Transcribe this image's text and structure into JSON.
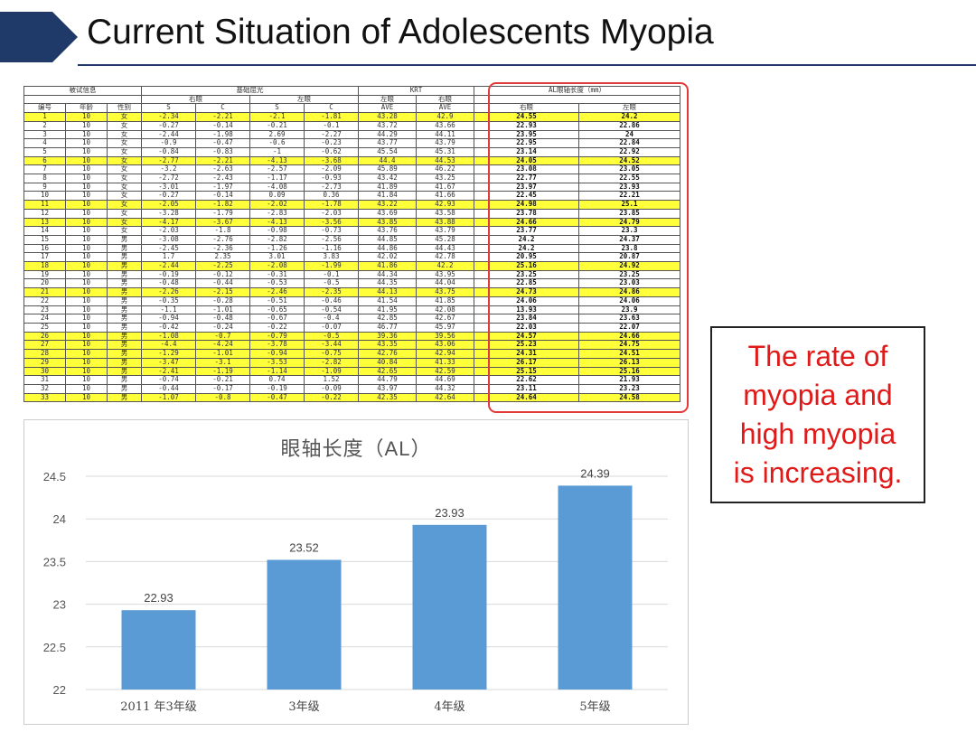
{
  "slide": {
    "title": "Current Situation of Adolescents Myopia",
    "callout": "The rate of\nmyopia and\nhigh myopia\nis increasing."
  },
  "table": {
    "group_headers": [
      "被试信息",
      "基础屈光",
      "KRT",
      "AL眼轴长度（mm）"
    ],
    "sub_headers": [
      "右眼",
      "左眼",
      "左眼",
      "右眼"
    ],
    "columns": [
      "编号",
      "年龄",
      "性别",
      "S",
      "C",
      "S",
      "C",
      "AVE",
      "AVE",
      "右眼",
      "左眼"
    ],
    "rows": [
      [
        "1",
        "10",
        "女",
        "-2.34",
        "-2.21",
        "-2.1",
        "-1.81",
        "43.28",
        "42.9",
        "24.55",
        "24.2"
      ],
      [
        "2",
        "10",
        "女",
        "-0.27",
        "-0.14",
        "-0.21",
        "-0.1",
        "43.72",
        "43.66",
        "22.93",
        "22.86"
      ],
      [
        "3",
        "10",
        "女",
        "-2.44",
        "-1.98",
        "2.69",
        "-2.27",
        "44.29",
        "44.11",
        "23.95",
        "24"
      ],
      [
        "4",
        "10",
        "女",
        "-0.9",
        "-0.47",
        "-0.6",
        "-0.23",
        "43.77",
        "43.79",
        "22.95",
        "22.84"
      ],
      [
        "5",
        "10",
        "女",
        "-0.84",
        "-0.83",
        "-1",
        "-0.62",
        "45.54",
        "45.31",
        "23.14",
        "22.92"
      ],
      [
        "6",
        "10",
        "女",
        "-2.77",
        "-2.21",
        "-4.13",
        "-3.68",
        "44.4",
        "44.53",
        "24.05",
        "24.52"
      ],
      [
        "7",
        "10",
        "女",
        "-3.2",
        "-2.63",
        "-2.57",
        "-2.09",
        "45.89",
        "46.22",
        "23.08",
        "23.05"
      ],
      [
        "8",
        "10",
        "女",
        "-2.72",
        "-2.43",
        "-1.17",
        "-0.93",
        "43.42",
        "43.25",
        "22.77",
        "22.55"
      ],
      [
        "9",
        "10",
        "女",
        "-3.01",
        "-1.97",
        "-4.08",
        "-2.73",
        "41.89",
        "41.67",
        "23.97",
        "23.93"
      ],
      [
        "10",
        "10",
        "女",
        "-0.27",
        "-0.14",
        "0.09",
        "0.36",
        "41.84",
        "41.66",
        "22.45",
        "22.21"
      ],
      [
        "11",
        "10",
        "女",
        "-2.05",
        "-1.82",
        "-2.02",
        "-1.78",
        "43.22",
        "42.93",
        "24.98",
        "25.1"
      ],
      [
        "12",
        "10",
        "女",
        "-3.28",
        "-1.79",
        "-2.83",
        "-2.03",
        "43.69",
        "43.58",
        "23.78",
        "23.85"
      ],
      [
        "13",
        "10",
        "女",
        "-4.17",
        "-3.67",
        "-4.13",
        "-3.56",
        "43.85",
        "43.88",
        "24.66",
        "24.79"
      ],
      [
        "14",
        "10",
        "女",
        "-2.03",
        "-1.8",
        "-0.98",
        "-0.73",
        "43.76",
        "43.79",
        "23.77",
        "23.3"
      ],
      [
        "15",
        "10",
        "男",
        "-3.08",
        "-2.76",
        "-2.82",
        "-2.56",
        "44.85",
        "45.28",
        "24.2",
        "24.37"
      ],
      [
        "16",
        "10",
        "男",
        "-2.45",
        "-2.36",
        "-1.26",
        "-1.16",
        "44.86",
        "44.43",
        "24.2",
        "23.8"
      ],
      [
        "17",
        "10",
        "男",
        "1.7",
        "2.35",
        "3.01",
        "3.83",
        "42.02",
        "42.78",
        "20.95",
        "20.87"
      ],
      [
        "18",
        "10",
        "男",
        "-2.44",
        "-2.25",
        "-2.08",
        "-1.99",
        "41.86",
        "42.2",
        "25.16",
        "24.92"
      ],
      [
        "19",
        "10",
        "男",
        "-0.19",
        "-0.12",
        "-0.31",
        "-0.1",
        "44.34",
        "43.95",
        "23.25",
        "23.25"
      ],
      [
        "20",
        "10",
        "男",
        "-0.48",
        "-0.44",
        "-0.53",
        "-0.5",
        "44.35",
        "44.04",
        "22.85",
        "23.03"
      ],
      [
        "21",
        "10",
        "男",
        "-2.26",
        "-2.15",
        "-2.46",
        "-2.35",
        "44.13",
        "43.75",
        "24.73",
        "24.86"
      ],
      [
        "22",
        "10",
        "男",
        "-0.35",
        "-0.28",
        "-0.51",
        "-0.46",
        "41.54",
        "41.85",
        "24.06",
        "24.06"
      ],
      [
        "23",
        "10",
        "男",
        "-1.1",
        "-1.01",
        "-0.65",
        "-0.54",
        "41.95",
        "42.08",
        "13.93",
        "23.9"
      ],
      [
        "24",
        "10",
        "男",
        "-0.94",
        "-0.48",
        "-0.67",
        "-0.4",
        "42.85",
        "42.67",
        "23.84",
        "23.63"
      ],
      [
        "25",
        "10",
        "男",
        "-0.42",
        "-0.24",
        "-0.22",
        "-0.07",
        "46.77",
        "45.97",
        "22.03",
        "22.07"
      ],
      [
        "26",
        "10",
        "男",
        "-1.08",
        "-0.7",
        "-0.79",
        "-0.5",
        "39.36",
        "39.56",
        "24.57",
        "24.66"
      ],
      [
        "27",
        "10",
        "男",
        "-4.4",
        "-4.24",
        "-3.78",
        "-3.44",
        "43.35",
        "43.06",
        "25.23",
        "24.75"
      ],
      [
        "28",
        "10",
        "男",
        "-1.29",
        "-1.01",
        "-0.94",
        "-0.75",
        "42.76",
        "42.94",
        "24.31",
        "24.51"
      ],
      [
        "29",
        "10",
        "男",
        "-3.47",
        "-3.1",
        "-3.53",
        "-2.82",
        "40.84",
        "41.33",
        "26.17",
        "26.13"
      ],
      [
        "30",
        "10",
        "男",
        "-2.41",
        "-1.19",
        "-1.14",
        "-1.09",
        "42.65",
        "42.59",
        "25.15",
        "25.16"
      ],
      [
        "31",
        "10",
        "男",
        "-0.74",
        "-0.21",
        "0.74",
        "1.52",
        "44.79",
        "44.69",
        "22.62",
        "21.93"
      ],
      [
        "32",
        "10",
        "男",
        "-0.44",
        "-0.17",
        "-0.19",
        "-0.09",
        "43.97",
        "44.32",
        "23.11",
        "23.23"
      ],
      [
        "33",
        "10",
        "男",
        "-1.07",
        "-0.8",
        "-0.47",
        "-0.22",
        "42.35",
        "42.64",
        "24.64",
        "24.58"
      ]
    ],
    "highlighted_rows": [
      "1",
      "6",
      "11",
      "13",
      "18",
      "21",
      "26",
      "27",
      "28",
      "29",
      "30",
      "33"
    ]
  },
  "colors": {
    "arrow": "#1f3a68",
    "highlight": "#ffff3a",
    "bar": "#5b9bd5",
    "callout_text": "#e01919",
    "red_box": "#e23a3a"
  },
  "chart_data": {
    "type": "bar",
    "title": "眼轴长度（AL）",
    "categories": [
      "2011 年3年级",
      "3年级",
      "4年级",
      "5年级"
    ],
    "values": [
      22.93,
      23.52,
      23.93,
      24.39
    ],
    "data_labels": [
      "22.93",
      "23.52",
      "23.93",
      "24.39"
    ],
    "yticks": [
      "22",
      "22.5",
      "23",
      "23.5",
      "24",
      "24.5"
    ],
    "ylim": [
      22,
      24.5
    ],
    "grid": true,
    "legend": false
  }
}
